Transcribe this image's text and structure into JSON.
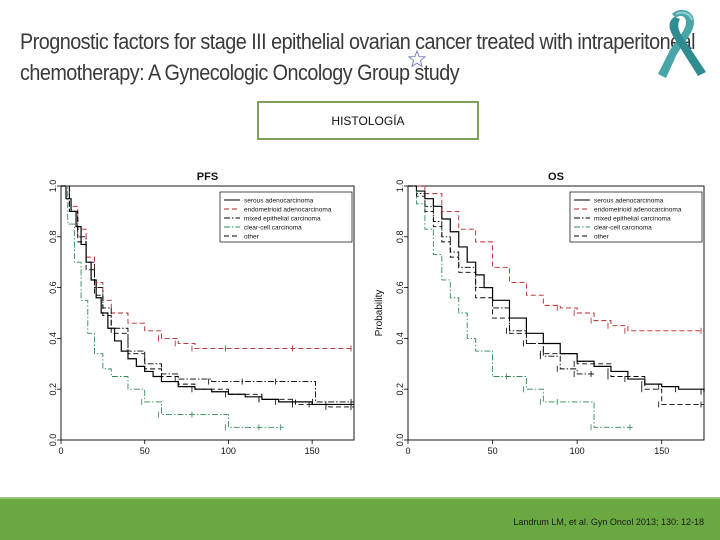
{
  "slide": {
    "title": "Prognostic factors for stage III epithelial ovarian cancer treated with intraperitoneal chemotherapy: A Gynecologic Oncology Group study",
    "title_line1": "Prognostic factors for stage III epithelial ovarian cancer treated with intraperitoneal",
    "title_line2": "chemotherapy: A Gynecologic Oncology Group study",
    "section_label": "HISTOLOGÍA",
    "citation": "Landrum LM, et al. Gyn Oncol 2013; 130: 12-18",
    "icons": [
      "star-icon",
      "awareness-ribbon-icon"
    ],
    "colors": {
      "footer": "#6aa842",
      "box_border": "#7f9f5b",
      "ribbon": "#4aa5a8"
    }
  },
  "chart_data": [
    {
      "type": "line",
      "title": "PFS",
      "xlabel": "",
      "ylabel": "",
      "xlim": [
        0,
        175
      ],
      "ylim": [
        0,
        1.0
      ],
      "xticks": [
        0,
        50,
        100,
        150
      ],
      "yticks": [
        0.0,
        0.2,
        0.4,
        0.6,
        0.8,
        1.0
      ],
      "legend_position": "top-right",
      "series": [
        {
          "name": "serous adenocarcinoma",
          "color": "#000000",
          "dash": "solid",
          "x": [
            0,
            3,
            6,
            9,
            12,
            15,
            18,
            21,
            24,
            28,
            32,
            36,
            40,
            45,
            50,
            55,
            60,
            70,
            80,
            90,
            100,
            110,
            120,
            130,
            140,
            150,
            160,
            175
          ],
          "y": [
            1.0,
            0.95,
            0.9,
            0.84,
            0.77,
            0.7,
            0.63,
            0.56,
            0.5,
            0.44,
            0.39,
            0.35,
            0.32,
            0.29,
            0.27,
            0.25,
            0.23,
            0.21,
            0.2,
            0.19,
            0.18,
            0.17,
            0.16,
            0.15,
            0.15,
            0.14,
            0.14,
            0.14
          ]
        },
        {
          "name": "endometrioid adenocarcinoma",
          "color": "#b22222",
          "dash": "dashed",
          "x": [
            0,
            5,
            10,
            15,
            20,
            25,
            30,
            40,
            50,
            60,
            70,
            80,
            100,
            140,
            175
          ],
          "y": [
            1.0,
            0.92,
            0.83,
            0.72,
            0.62,
            0.55,
            0.5,
            0.46,
            0.43,
            0.4,
            0.38,
            0.36,
            0.36,
            0.36,
            0.36
          ]
        },
        {
          "name": "mixed epithelial carcinoma",
          "color": "#000000",
          "dash": "dashdot",
          "x": [
            0,
            5,
            10,
            15,
            20,
            25,
            30,
            40,
            50,
            60,
            70,
            90,
            110,
            130,
            152,
            175
          ],
          "y": [
            1.0,
            0.9,
            0.8,
            0.7,
            0.6,
            0.52,
            0.44,
            0.35,
            0.3,
            0.26,
            0.24,
            0.23,
            0.23,
            0.23,
            0.15,
            0.15
          ]
        },
        {
          "name": "clear-cell carcinoma",
          "color": "#2e8b57",
          "dash": "dashdot",
          "x": [
            0,
            4,
            8,
            12,
            16,
            20,
            25,
            30,
            40,
            50,
            60,
            80,
            100,
            120,
            133
          ],
          "y": [
            1.0,
            0.85,
            0.7,
            0.55,
            0.42,
            0.34,
            0.28,
            0.25,
            0.2,
            0.15,
            0.1,
            0.1,
            0.05,
            0.05,
            0.05
          ]
        },
        {
          "name": "other",
          "color": "#000000",
          "dash": "dashed",
          "x": [
            0,
            5,
            10,
            15,
            20,
            25,
            30,
            40,
            50,
            60,
            70,
            80,
            100,
            120,
            140,
            160,
            175
          ],
          "y": [
            1.0,
            0.9,
            0.78,
            0.67,
            0.57,
            0.49,
            0.42,
            0.34,
            0.28,
            0.25,
            0.22,
            0.2,
            0.18,
            0.16,
            0.14,
            0.13,
            0.13
          ]
        }
      ]
    },
    {
      "type": "line",
      "title": "OS",
      "xlabel": "",
      "ylabel": "Probability",
      "xlim": [
        0,
        175
      ],
      "ylim": [
        0,
        1.0
      ],
      "xticks": [
        0,
        50,
        100,
        150
      ],
      "yticks": [
        0.0,
        0.2,
        0.4,
        0.6,
        0.8,
        1.0
      ],
      "legend_position": "top-right",
      "series": [
        {
          "name": "serous adenocarcinoma",
          "color": "#000000",
          "dash": "solid",
          "x": [
            0,
            5,
            10,
            15,
            20,
            25,
            30,
            35,
            40,
            45,
            50,
            60,
            70,
            80,
            90,
            100,
            110,
            120,
            130,
            140,
            150,
            160,
            175
          ],
          "y": [
            1.0,
            0.98,
            0.95,
            0.92,
            0.87,
            0.82,
            0.76,
            0.7,
            0.65,
            0.6,
            0.55,
            0.48,
            0.42,
            0.38,
            0.34,
            0.31,
            0.29,
            0.27,
            0.24,
            0.22,
            0.21,
            0.2,
            0.19
          ]
        },
        {
          "name": "endometrioid adenocarcinoma",
          "color": "#b22222",
          "dash": "dashed",
          "x": [
            0,
            10,
            20,
            30,
            40,
            50,
            60,
            70,
            80,
            90,
            100,
            110,
            120,
            130,
            175
          ],
          "y": [
            1.0,
            0.97,
            0.9,
            0.83,
            0.78,
            0.68,
            0.62,
            0.57,
            0.53,
            0.52,
            0.5,
            0.47,
            0.45,
            0.43,
            0.43
          ]
        },
        {
          "name": "mixed epithelial carcinoma",
          "color": "#000000",
          "dash": "dashdot",
          "x": [
            0,
            5,
            10,
            15,
            20,
            25,
            30,
            40,
            50,
            60,
            70,
            80,
            90,
            100,
            110
          ],
          "y": [
            1.0,
            0.97,
            0.92,
            0.86,
            0.8,
            0.74,
            0.68,
            0.6,
            0.52,
            0.43,
            0.38,
            0.33,
            0.28,
            0.26,
            0.26
          ]
        },
        {
          "name": "clear-cell carcinoma",
          "color": "#2e8b57",
          "dash": "dashdot",
          "x": [
            0,
            5,
            10,
            15,
            20,
            25,
            30,
            35,
            40,
            50,
            60,
            70,
            80,
            90,
            110,
            133
          ],
          "y": [
            1.0,
            0.93,
            0.83,
            0.73,
            0.63,
            0.56,
            0.5,
            0.4,
            0.35,
            0.25,
            0.25,
            0.2,
            0.15,
            0.15,
            0.05,
            0.05
          ]
        },
        {
          "name": "other",
          "color": "#000000",
          "dash": "dashed",
          "x": [
            0,
            5,
            10,
            15,
            20,
            25,
            30,
            40,
            50,
            60,
            70,
            80,
            100,
            120,
            140,
            150,
            175
          ],
          "y": [
            1.0,
            0.96,
            0.9,
            0.84,
            0.78,
            0.72,
            0.66,
            0.56,
            0.48,
            0.42,
            0.38,
            0.34,
            0.3,
            0.25,
            0.2,
            0.14,
            0.14
          ]
        }
      ]
    }
  ]
}
